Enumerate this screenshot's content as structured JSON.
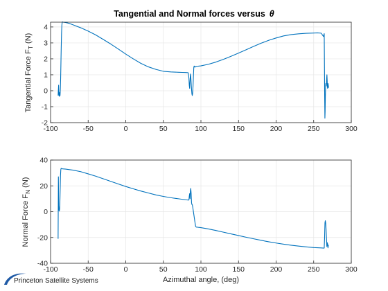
{
  "logo": {
    "text": "Princeton Satellite Systems",
    "swoosh_color": "#1f5aa6"
  },
  "chart_data": [
    {
      "type": "line",
      "title": "Tangential and Normal forces versus",
      "title_symbol": "θ",
      "xlabel": "",
      "ylabel": "Tangential Force F",
      "ylabel_sub": "T",
      "ylabel_unit": " (N)",
      "xlim": [
        -100,
        300
      ],
      "ylim": [
        -2,
        4.3
      ],
      "xticks": [
        -100,
        -50,
        0,
        50,
        100,
        150,
        200,
        250,
        300
      ],
      "yticks": [
        -2,
        -1,
        0,
        1,
        2,
        3,
        4
      ],
      "grid": true,
      "color": "#0072BD",
      "series": [
        {
          "x": [
            -90,
            -89.3,
            -88.8,
            -88.3,
            -87.8,
            -87.4,
            -87,
            -86.6,
            -86.2,
            -85.8,
            -85.4,
            -85,
            -84.6,
            -84.2,
            -83.8,
            -83.4,
            -80,
            -75,
            -70,
            -60,
            -50,
            -40,
            -30,
            -20,
            -10,
            0,
            10,
            20,
            30,
            40,
            50,
            60,
            65,
            70,
            75,
            80,
            83,
            84,
            84.5,
            85,
            85.5,
            86,
            86.5,
            87,
            87.5,
            88,
            88.5,
            89,
            89.5,
            90,
            90.5,
            91,
            91.5,
            92,
            92.5,
            93,
            93.5,
            94,
            94.5,
            95,
            96,
            100,
            110,
            120,
            130,
            140,
            150,
            160,
            170,
            180,
            190,
            200,
            210,
            220,
            230,
            240,
            250,
            255,
            260,
            263,
            264,
            264.3,
            264.6,
            264.9,
            265.2,
            265.5,
            265.8,
            266.1,
            266.4,
            266.7,
            267,
            267.3,
            267.6,
            267.9,
            268.2,
            268.5,
            268.8,
            269.1,
            269.4,
            269.7,
            270
          ],
          "y": [
            -0.3,
            0.35,
            -0.3,
            -0.35,
            -0.1,
            -0.3,
            0.1,
            0.8,
            1.8,
            2.8,
            3.6,
            4.1,
            4.28,
            4.32,
            4.3,
            4.3,
            4.28,
            4.22,
            4.13,
            3.95,
            3.74,
            3.5,
            3.22,
            2.93,
            2.62,
            2.3,
            2.0,
            1.72,
            1.5,
            1.34,
            1.22,
            1.18,
            1.17,
            1.16,
            1.15,
            1.14,
            1.13,
            0.8,
            0.35,
            0.15,
            0.6,
            1.05,
            0.9,
            0.5,
            0.1,
            -0.2,
            -0.3,
            -0.15,
            0.3,
            0.9,
            1.45,
            1.55,
            1.5,
            1.48,
            1.5,
            1.52,
            1.52,
            1.52,
            1.53,
            1.53,
            1.54,
            1.56,
            1.66,
            1.8,
            1.97,
            2.16,
            2.36,
            2.57,
            2.78,
            2.98,
            3.16,
            3.31,
            3.44,
            3.52,
            3.57,
            3.6,
            3.62,
            3.63,
            3.61,
            3.4,
            3.58,
            1.6,
            -0.4,
            -1.72,
            -1.3,
            -0.4,
            0.2,
            0.45,
            0.38,
            0.3,
            0.5,
            0.8,
            1.0,
            0.7,
            0.25,
            0.15,
            0.3,
            0.45,
            0.35,
            0.2,
            0.2
          ]
        }
      ]
    },
    {
      "type": "line",
      "title": "",
      "xlabel": "Azimuthal angle,  (deg)",
      "ylabel": "Normal Force F",
      "ylabel_sub": "N",
      "ylabel_unit": " (N)",
      "xlim": [
        -100,
        300
      ],
      "ylim": [
        -40,
        40
      ],
      "xticks": [
        -100,
        -50,
        0,
        50,
        100,
        150,
        200,
        250,
        300
      ],
      "yticks": [
        -40,
        -20,
        0,
        20,
        40
      ],
      "grid": true,
      "color": "#0072BD",
      "series": [
        {
          "x": [
            -90,
            -89.6,
            -89.2,
            -88.8,
            -88.4,
            -88,
            -87.6,
            -87.2,
            -86.8,
            -86.4,
            -86,
            -85.5,
            -85,
            -84,
            -80,
            -70,
            -60,
            -50,
            -40,
            -30,
            -20,
            -10,
            0,
            10,
            20,
            30,
            40,
            50,
            60,
            70,
            80,
            83,
            84,
            84.5,
            85,
            85.5,
            86,
            86.5,
            87,
            87.5,
            88,
            88.5,
            89,
            89.5,
            90,
            91,
            92,
            93,
            94,
            95,
            96,
            100,
            110,
            120,
            130,
            140,
            150,
            160,
            170,
            180,
            190,
            200,
            210,
            220,
            230,
            240,
            250,
            260,
            263,
            264,
            264.5,
            265,
            265.5,
            266,
            266.5,
            267,
            267.5,
            268,
            268.5,
            269,
            269.5,
            270
          ],
          "y": [
            -21,
            27,
            5,
            1,
            0.5,
            2,
            8,
            18,
            28,
            32.5,
            33.5,
            33.5,
            33.3,
            33.2,
            33,
            32.2,
            31,
            29.3,
            27.5,
            25.5,
            23.5,
            21.5,
            19.5,
            17.7,
            16,
            14.5,
            13,
            11.8,
            10.8,
            10,
            9.2,
            9.0,
            9.0,
            12,
            14,
            10,
            16,
            18,
            14,
            7,
            5.5,
            5.4,
            4,
            2,
            0,
            -4,
            -8,
            -11.5,
            -12,
            -12,
            -12.1,
            -12.4,
            -13.4,
            -14.6,
            -15.9,
            -17.2,
            -18.5,
            -19.8,
            -21,
            -22.2,
            -23.3,
            -24.3,
            -25.2,
            -26,
            -26.7,
            -27.3,
            -27.8,
            -28.1,
            -28.2,
            -28.2,
            -20,
            -8.5,
            -7,
            -9,
            -14,
            -20,
            -27,
            -24,
            -25,
            -28,
            -26,
            -26
          ]
        }
      ]
    }
  ]
}
